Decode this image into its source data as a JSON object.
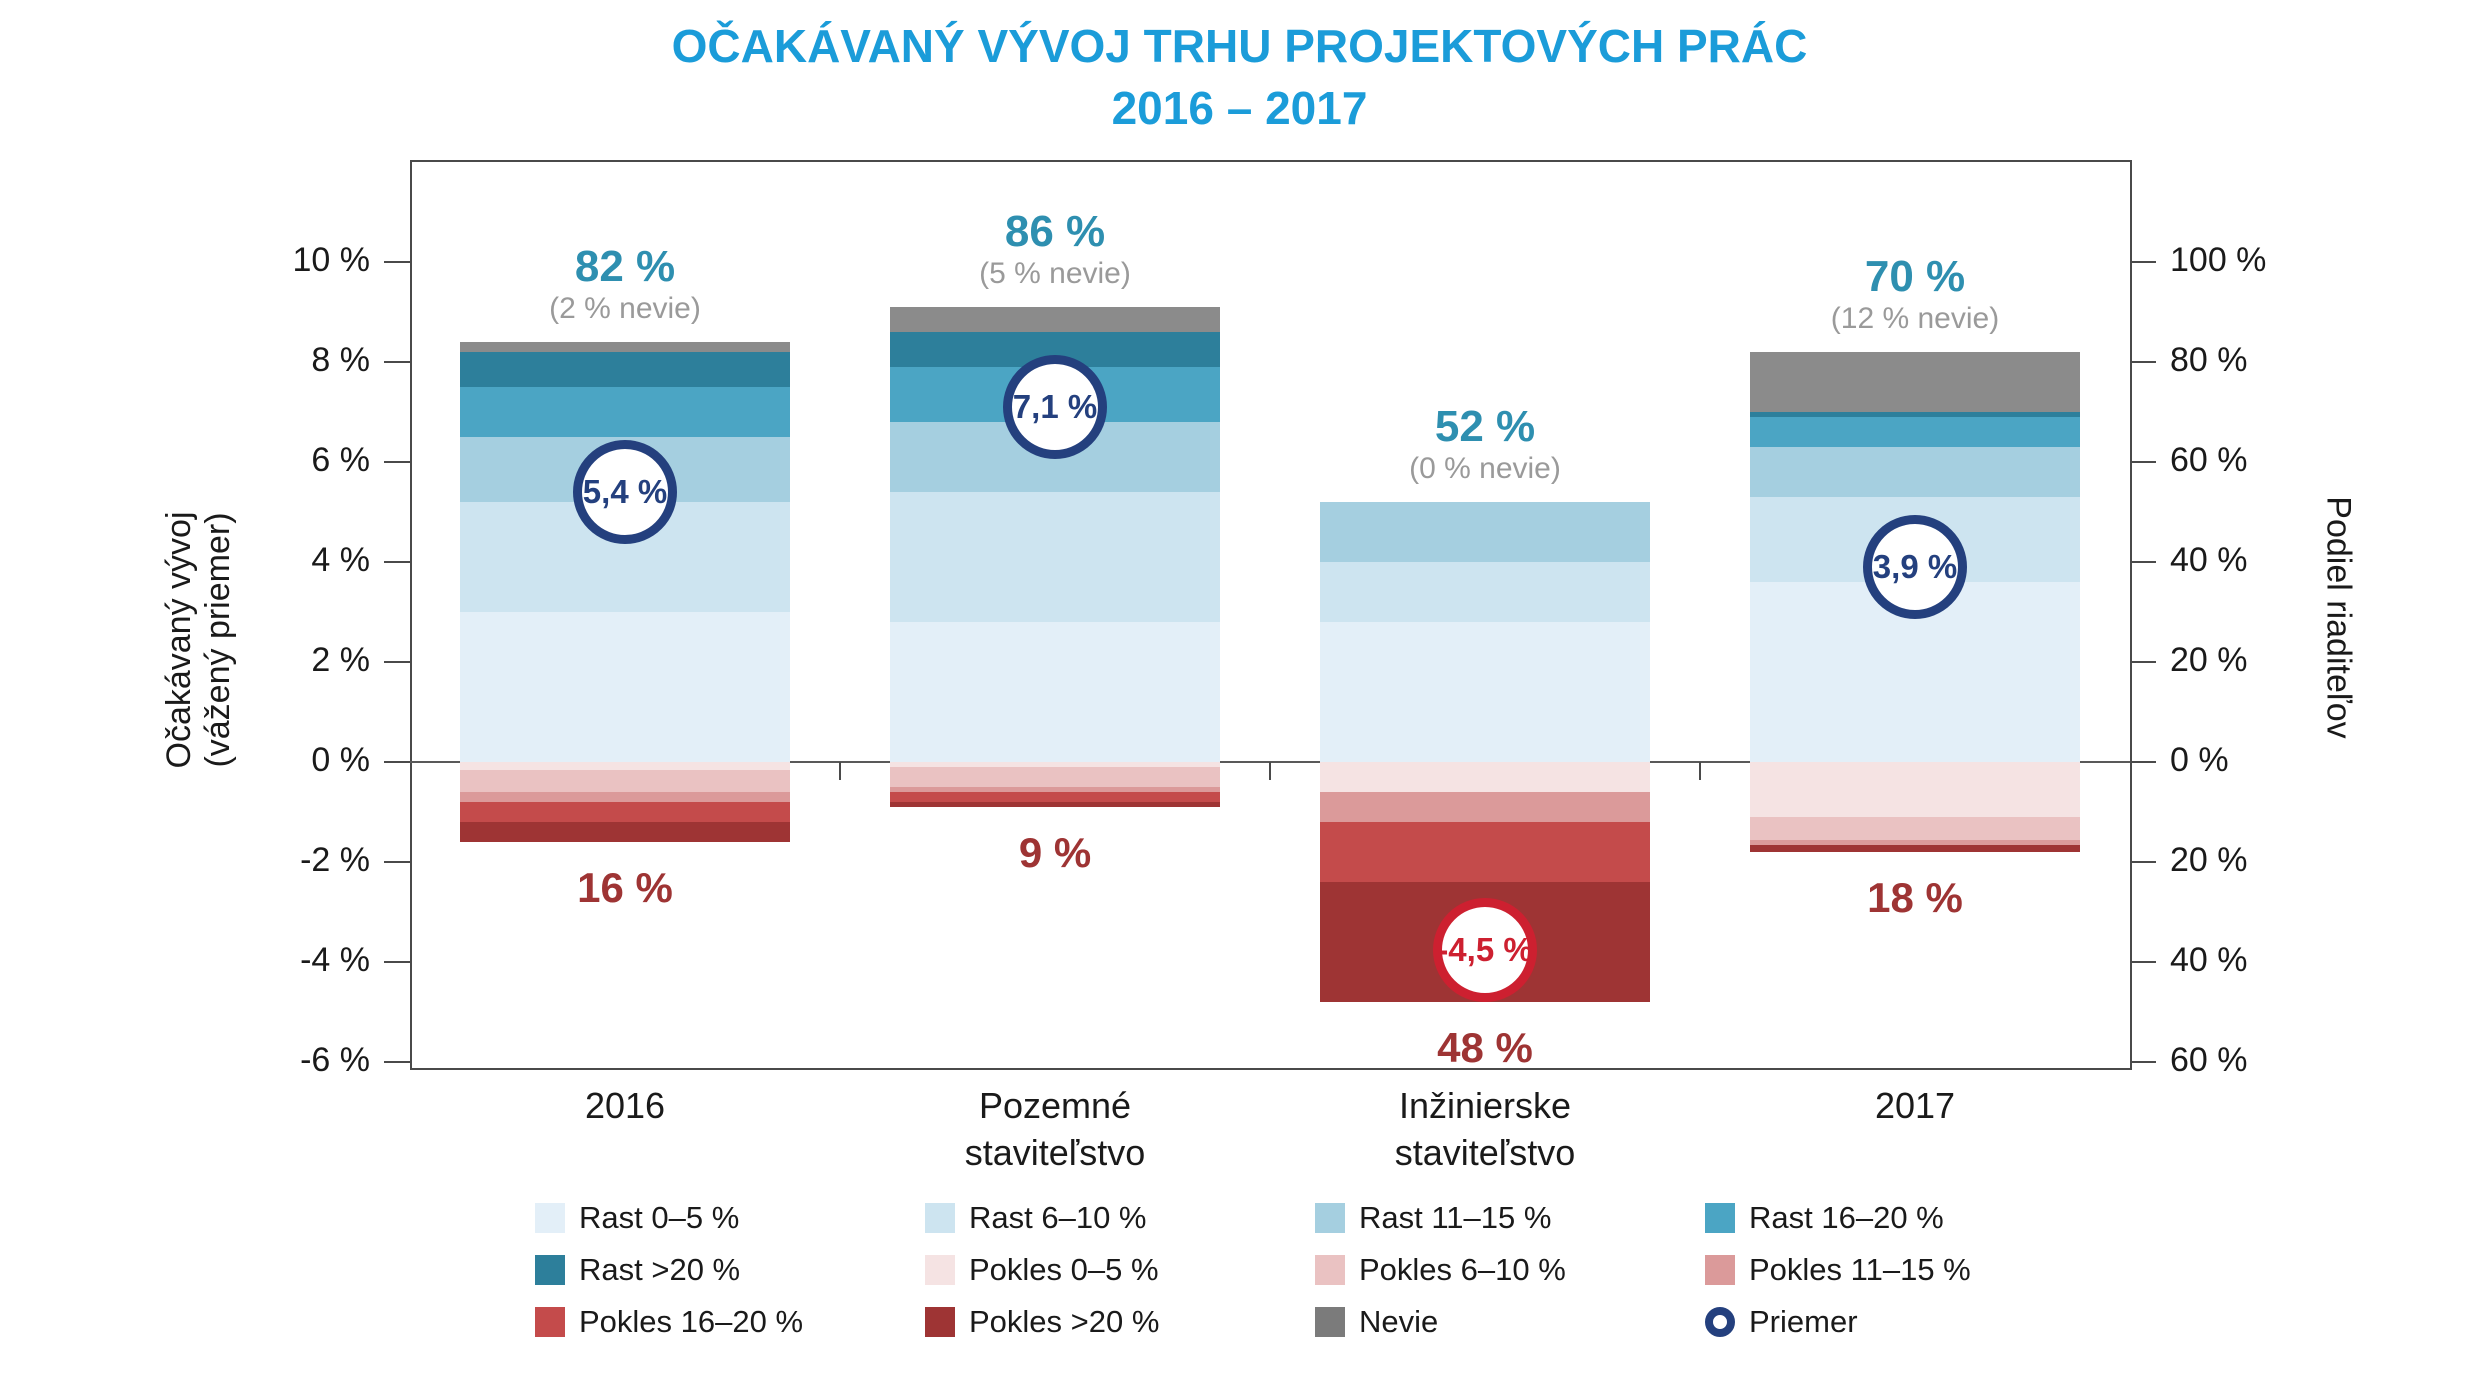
{
  "title": {
    "line1": "OČAKÁVANÝ VÝVOJ TRHU PROJEKTOVÝCH PRÁC",
    "line2": "2016 – 2017"
  },
  "axes": {
    "left": {
      "label_line1": "Očakávaný vývoj",
      "label_line2": "(vážený priemer)",
      "ticks": [
        "10 %",
        "8 %",
        "6 %",
        "4 %",
        "2 %",
        "0 %",
        "-2 %",
        "-4 %",
        "-6 %"
      ],
      "tick_values": [
        10,
        8,
        6,
        4,
        2,
        0,
        -2,
        -4,
        -6
      ]
    },
    "right": {
      "label": "Podiel riaditeľov",
      "ticks": [
        "100 %",
        "80 %",
        "60 %",
        "40 %",
        "20 %",
        "0 %",
        "20 %",
        "40 %",
        "60 %"
      ],
      "tick_values": [
        10,
        8,
        6,
        4,
        2,
        0,
        -2,
        -4,
        -6
      ]
    }
  },
  "chart_data": {
    "type": "bar",
    "stacked": true,
    "title": "OČAKÁVANÝ VÝVOJ TRHU PROJEKTOVÝCH PRÁC 2016 – 2017",
    "categories": [
      "2016",
      "Pozemné staviteľstvo",
      "Inžinierske staviteľstvo",
      "2017"
    ],
    "category_label_lines": [
      [
        "2016"
      ],
      [
        "Pozemné",
        "staviteľstvo"
      ],
      [
        "Inžinierske",
        "staviteľstvo"
      ],
      [
        "2017"
      ]
    ],
    "left_axis": {
      "label": "Očakávaný vývoj (vážený priemer)",
      "unit": "%",
      "range": [
        -6,
        10
      ]
    },
    "right_axis": {
      "label": "Podiel riaditeľov",
      "unit": "%",
      "note": "share of directors, mirrored below zero"
    },
    "grid": false,
    "legend_position": "bottom",
    "series": [
      {
        "name": "Rast 0–5 %",
        "color": "#e3eff8",
        "values": [
          30,
          28,
          28,
          36
        ]
      },
      {
        "name": "Rast 6–10 %",
        "color": "#cde4f0",
        "values": [
          22,
          26,
          12,
          17
        ]
      },
      {
        "name": "Rast 11–15 %",
        "color": "#a5cfe0",
        "values": [
          13,
          14,
          12,
          10
        ]
      },
      {
        "name": "Rast 16–20 %",
        "color": "#4ba5c4",
        "values": [
          10,
          11,
          0,
          6
        ]
      },
      {
        "name": "Rast >20 %",
        "color": "#2d7f9b",
        "values": [
          7,
          7,
          0,
          1
        ]
      },
      {
        "name": "Nevie",
        "color": "#8b8b8b",
        "values": [
          2,
          5,
          0,
          12
        ]
      },
      {
        "name": "Pokles 0–5 %",
        "color": "#f5e3e3",
        "values": [
          -1.5,
          -1,
          -6,
          -11
        ]
      },
      {
        "name": "Pokles 6–10 %",
        "color": "#eac2c2",
        "values": [
          -4.5,
          -4,
          0,
          -4.5
        ]
      },
      {
        "name": "Pokles 11–15 %",
        "color": "#db9a9a",
        "values": [
          -2,
          -1,
          -6,
          -1
        ]
      },
      {
        "name": "Pokles 16–20 %",
        "color": "#c44b4b",
        "values": [
          -4,
          -2,
          -12,
          0
        ]
      },
      {
        "name": "Pokles >20 %",
        "color": "#9e3434",
        "values": [
          -4,
          -1,
          -24,
          -1.5
        ]
      }
    ],
    "priemer": {
      "name": "Priemer",
      "values": [
        5.4,
        7.1,
        -4.5,
        3.9
      ],
      "labels": [
        "5,4 %",
        "7,1 %",
        "-4,5 %",
        "3,9 %"
      ]
    },
    "annotations": {
      "growth_total": [
        "82 %",
        "86 %",
        "52 %",
        "70 %"
      ],
      "nevie_note": [
        "(2 % nevie)",
        "(5 % nevie)",
        "(0 % nevie)",
        "(12 % nevie)"
      ],
      "decline_total": [
        "16 %",
        "9 %",
        "48 %",
        "18 %"
      ]
    }
  },
  "legend": {
    "items": [
      {
        "label": "Rast 0–5 %",
        "type": "swatch",
        "color": "#e3eff8"
      },
      {
        "label": "Rast 6–10 %",
        "type": "swatch",
        "color": "#cde4f0"
      },
      {
        "label": "Rast 11–15 %",
        "type": "swatch",
        "color": "#a5cfe0"
      },
      {
        "label": "Rast 16–20 %",
        "type": "swatch",
        "color": "#4ba5c4"
      },
      {
        "label": "Rast >20 %",
        "type": "swatch",
        "color": "#2d7f9b"
      },
      {
        "label": "Pokles 0–5 %",
        "type": "swatch",
        "color": "#f5e3e3"
      },
      {
        "label": "Pokles 6–10 %",
        "type": "swatch",
        "color": "#eac2c2"
      },
      {
        "label": "Pokles 11–15 %",
        "type": "swatch",
        "color": "#db9a9a"
      },
      {
        "label": "Pokles 16–20 %",
        "type": "swatch",
        "color": "#c44b4b"
      },
      {
        "label": "Pokles >20 %",
        "type": "swatch",
        "color": "#9e3434"
      },
      {
        "label": "Nevie",
        "type": "swatch",
        "color": "#7b7b7b"
      },
      {
        "label": "Priemer",
        "type": "circle",
        "color": "#24407e"
      }
    ]
  },
  "colors": {
    "title": "#1b9cd9",
    "growth_label": "#2e8fb0",
    "note_gray": "#9a9a9a",
    "decline_label": "#9e3434",
    "priemer_positive": "#24407e",
    "priemer_negative": "#cd2030",
    "frame": "#4a4a4a"
  }
}
